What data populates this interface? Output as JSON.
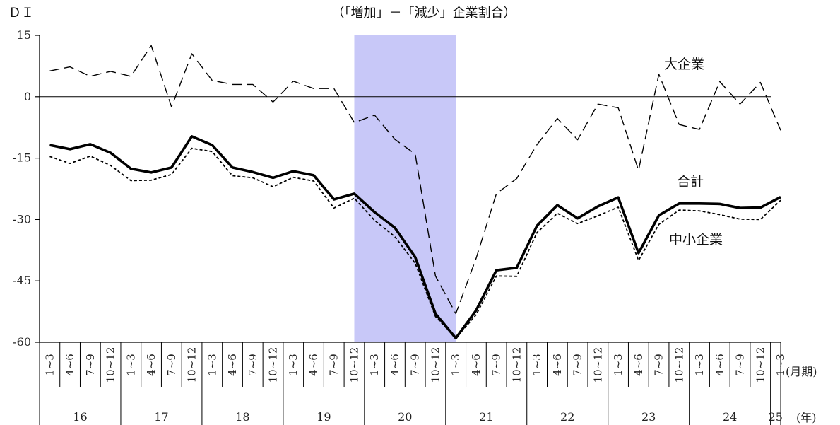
{
  "chart_data": {
    "type": "line",
    "title": "（「増加」－「減少」企業割合）",
    "ylabel": "ＤＩ",
    "ylim": [
      -60,
      15
    ],
    "yticks": [
      15,
      0,
      -15,
      -30,
      -45,
      -60
    ],
    "x_unit_label": "(月期)",
    "year_unit_label": "(年)",
    "categories": [
      "1~3",
      "4~6",
      "7~9",
      "10~12",
      "1~3",
      "4~6",
      "7~9",
      "10~12",
      "1~3",
      "4~6",
      "7~9",
      "10~12",
      "1~3",
      "4~6",
      "7~9",
      "10~12",
      "1~3",
      "4~6",
      "7~9",
      "10~12",
      "1~3",
      "4~6",
      "7~9",
      "10~12",
      "1~3",
      "4~6",
      "7~9",
      "10~12",
      "1~3",
      "4~6",
      "7~9",
      "10~12",
      "1~3",
      "4~6",
      "7~9",
      "10~12",
      "1~3"
    ],
    "years": [
      {
        "label": "16",
        "start": 0,
        "count": 4
      },
      {
        "label": "17",
        "start": 4,
        "count": 4
      },
      {
        "label": "18",
        "start": 8,
        "count": 4
      },
      {
        "label": "19",
        "start": 12,
        "count": 4
      },
      {
        "label": "20",
        "start": 16,
        "count": 4
      },
      {
        "label": "21",
        "start": 20,
        "count": 4
      },
      {
        "label": "22",
        "start": 24,
        "count": 4
      },
      {
        "label": "23",
        "start": 28,
        "count": 4
      },
      {
        "label": "24",
        "start": 32,
        "count": 4
      },
      {
        "label": "25",
        "start": 36,
        "count": 1
      }
    ],
    "shaded_range": [
      15,
      20
    ],
    "shade_color": "#c8c8f8",
    "series": [
      {
        "name": "大企業",
        "style": "dashed",
        "values": [
          6.3,
          7.3,
          5.0,
          6.2,
          5.0,
          12.5,
          -2.5,
          10.5,
          4.0,
          3.0,
          3.0,
          -1.3,
          3.8,
          2.0,
          2.0,
          -6.3,
          -4.5,
          -10.4,
          -14.0,
          -43.8,
          -53.0,
          -39.5,
          -23.7,
          -20.0,
          -11.7,
          -5.3,
          -10.5,
          -1.8,
          -2.7,
          -18.0,
          5.5,
          -6.8,
          -8.0,
          3.7,
          -1.8,
          3.5,
          -8.2
        ]
      },
      {
        "name": "合計",
        "style": "bold",
        "values": [
          -11.8,
          -12.8,
          -11.6,
          -13.7,
          -17.6,
          -18.5,
          -17.3,
          -9.7,
          -11.8,
          -17.3,
          -18.4,
          -19.8,
          -18.2,
          -19.2,
          -25.1,
          -23.7,
          -28.2,
          -32.0,
          -39.2,
          -53.0,
          -59.0,
          -52.2,
          -42.4,
          -41.8,
          -31.5,
          -26.5,
          -29.7,
          -26.8,
          -24.6,
          -38.2,
          -29.0,
          -26.1,
          -26.1,
          -26.2,
          -27.2,
          -27.1,
          -24.5
        ]
      },
      {
        "name": "中小企業",
        "style": "dotted",
        "values": [
          -14.6,
          -16.3,
          -14.5,
          -16.8,
          -20.5,
          -20.4,
          -19.0,
          -12.6,
          -13.4,
          -19.3,
          -19.8,
          -22.0,
          -19.7,
          -20.6,
          -27.2,
          -24.8,
          -30.2,
          -34.2,
          -40.7,
          -53.7,
          -59.0,
          -53.3,
          -43.8,
          -43.9,
          -33.2,
          -28.5,
          -31.0,
          -29.1,
          -27.0,
          -40.0,
          -31.2,
          -27.7,
          -27.9,
          -28.8,
          -29.9,
          -30.0,
          -25.3
        ]
      }
    ]
  }
}
